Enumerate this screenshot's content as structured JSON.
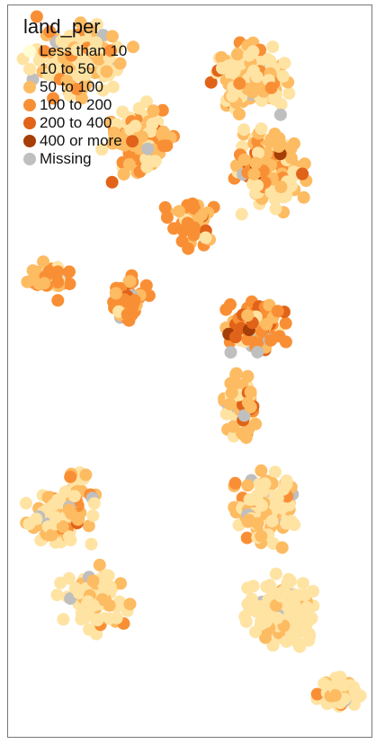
{
  "legend": {
    "title": "land_per",
    "items": [
      {
        "label": "Less than 10",
        "color": "#fffdd4"
      },
      {
        "label": "10 to 50",
        "color": "#fee3a3"
      },
      {
        "label": "50 to 100",
        "color": "#fdbb62"
      },
      {
        "label": "100 to 200",
        "color": "#f98f35"
      },
      {
        "label": "200 to 400",
        "color": "#e06319"
      },
      {
        "label": "400 or more",
        "color": "#a63e08"
      },
      {
        "label": "Missing",
        "color": "#bfbfbf"
      }
    ]
  }
}
